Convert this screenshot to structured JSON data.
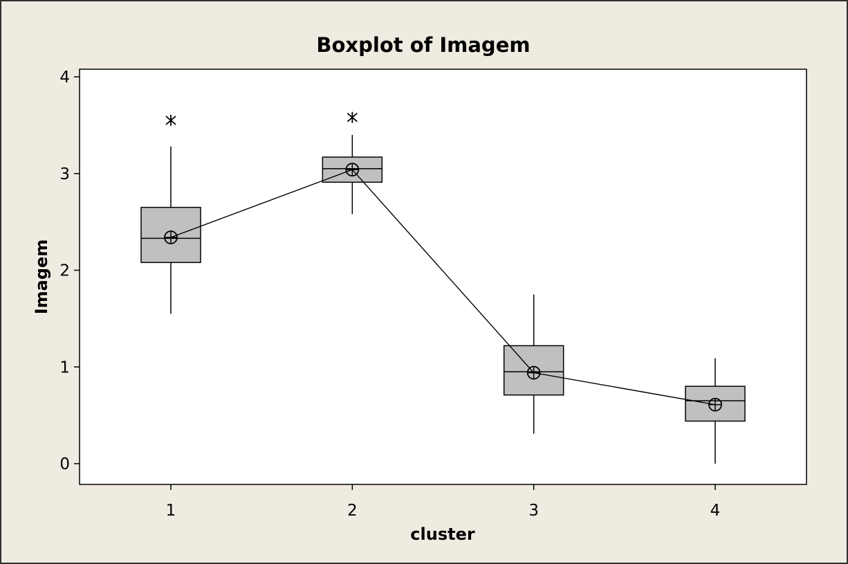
{
  "chart_data": {
    "type": "boxplot",
    "title": "Boxplot of Imagem",
    "xlabel": "cluster",
    "ylabel": "Imagem",
    "categories": [
      "1",
      "2",
      "3",
      "4"
    ],
    "yticks": [
      "0",
      "1",
      "2",
      "3",
      "4"
    ],
    "ylim": [
      -0.2,
      4.1
    ],
    "grid": false,
    "legend": "none",
    "box_fill": "#c0c0c0",
    "frame_bg": "#efebe1",
    "plot_bg": "#ffffff",
    "boxes": [
      {
        "category": "1",
        "whisker_low": 1.55,
        "q1": 2.08,
        "median": 2.33,
        "q3": 2.65,
        "whisker_high": 3.28,
        "mean": 2.34,
        "outliers": [
          3.55
        ]
      },
      {
        "category": "2",
        "whisker_low": 2.58,
        "q1": 2.91,
        "median": 3.05,
        "q3": 3.17,
        "whisker_high": 3.4,
        "mean": 3.04,
        "outliers": [
          3.58
        ]
      },
      {
        "category": "3",
        "whisker_low": 0.31,
        "q1": 0.71,
        "median": 0.95,
        "q3": 1.22,
        "whisker_high": 1.75,
        "mean": 0.94,
        "outliers": []
      },
      {
        "category": "4",
        "whisker_low": 0.0,
        "q1": 0.44,
        "median": 0.65,
        "q3": 0.8,
        "whisker_high": 1.09,
        "mean": 0.61,
        "outliers": []
      }
    ],
    "mean_connect_line": true
  }
}
